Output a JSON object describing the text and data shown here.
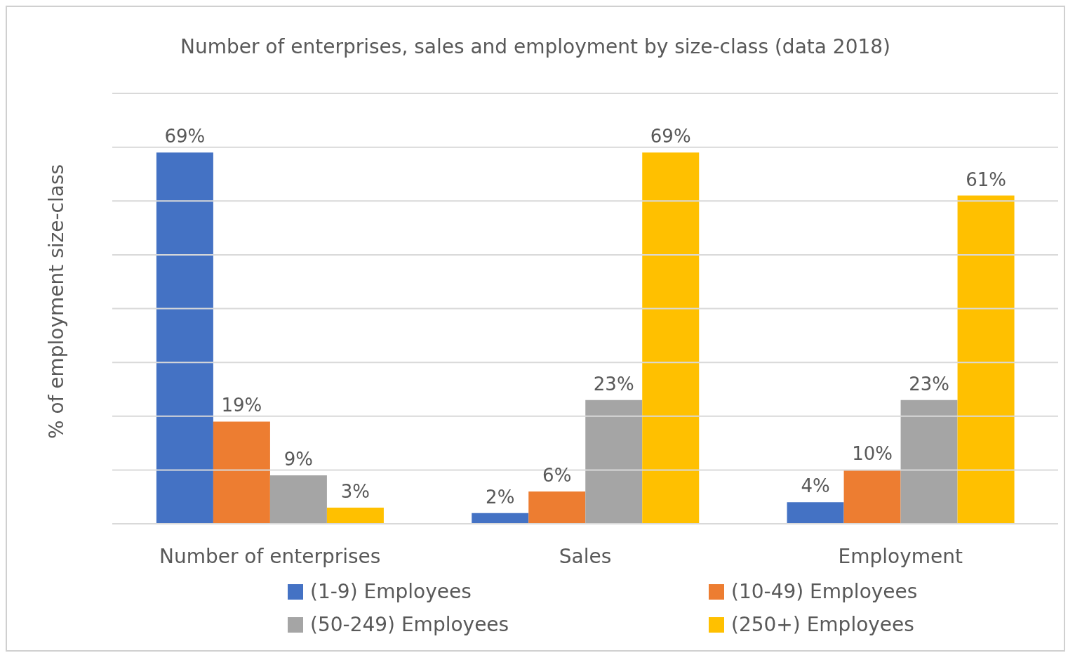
{
  "chart_data": {
    "type": "bar",
    "title": "Number  of enterprises, sales and employment by size-class (data 2018)",
    "ylabel": "% of employment  size-class",
    "categories": [
      "Number of enterprises",
      "Sales",
      "Employment"
    ],
    "series": [
      {
        "name": "(1-9) Employees",
        "color": "#4472c4",
        "values": [
          69,
          2,
          4
        ],
        "value_labels": [
          "69%",
          "2%",
          "4%"
        ]
      },
      {
        "name": "(10-49) Employees",
        "color": "#ed7d31",
        "values": [
          19,
          6,
          10
        ],
        "value_labels": [
          "19%",
          "6%",
          "10%"
        ]
      },
      {
        "name": "(50-249) Employees",
        "color": "#a5a5a5",
        "values": [
          9,
          23,
          23
        ],
        "value_labels": [
          "9%",
          "23%",
          "23%"
        ]
      },
      {
        "name": "(250+) Employees",
        "color": "#ffc000",
        "values": [
          3,
          69,
          61
        ],
        "value_labels": [
          "3%",
          "69%",
          "61%"
        ]
      }
    ],
    "ylim": [
      0,
      80
    ],
    "yticks": [
      {
        "value": 0,
        "label": null
      },
      {
        "value": 10,
        "label": null
      },
      {
        "value": 20,
        "label": null
      },
      {
        "value": 30,
        "label": null
      },
      {
        "value": 40,
        "label": null
      },
      {
        "value": 50,
        "label": null
      },
      {
        "value": 60,
        "label": null
      },
      {
        "value": 70,
        "label": null
      },
      {
        "value": 80,
        "label": null
      }
    ],
    "tick_labels": "x",
    "grid": "y",
    "legend": "bottom"
  }
}
